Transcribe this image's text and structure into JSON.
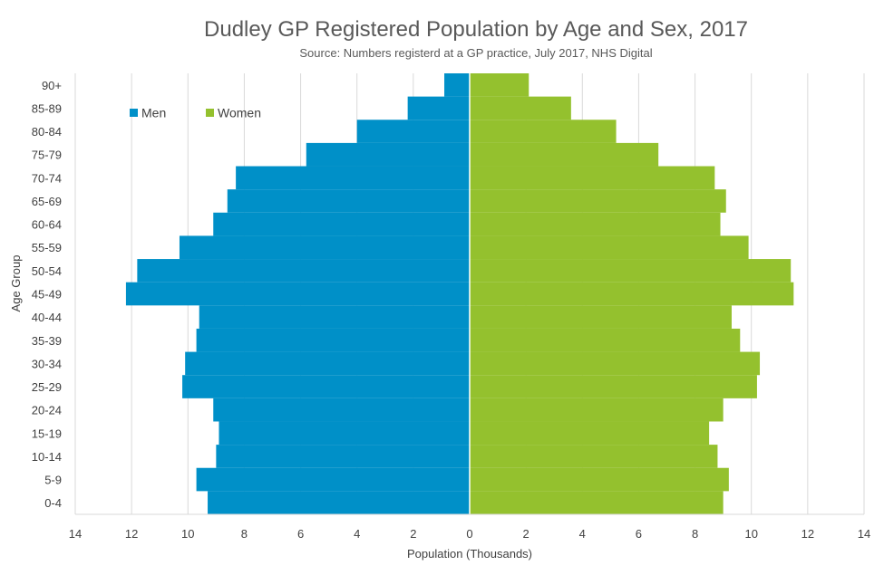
{
  "chart_data": {
    "type": "bar",
    "orientation": "horizontal",
    "layout": "population-pyramid",
    "title": "Dudley GP Registered Population by Age and Sex, 2017",
    "subtitle": "Source: Numbers registerd at a GP practice, July 2017, NHS Digital",
    "xlabel": "Population (Thousands)",
    "ylabel": "Age Group",
    "xlim": [
      -14,
      14
    ],
    "x_ticks": [
      -14,
      -12,
      -10,
      -8,
      -6,
      -4,
      -2,
      0,
      2,
      4,
      6,
      8,
      10,
      12,
      14
    ],
    "x_tick_labels": [
      "14",
      "12",
      "10",
      "8",
      "6",
      "4",
      "2",
      "0",
      "2",
      "4",
      "6",
      "8",
      "10",
      "12",
      "14"
    ],
    "grid": "vertical",
    "legend_position": "top-left",
    "categories": [
      "0-4",
      "5-9",
      "10-14",
      "15-19",
      "20-24",
      "25-29",
      "30-34",
      "35-39",
      "40-44",
      "45-49",
      "50-54",
      "55-59",
      "60-64",
      "65-69",
      "70-74",
      "75-79",
      "80-84",
      "85-89",
      "90+"
    ],
    "series": [
      {
        "name": "Men",
        "color": "#0090c8",
        "values": [
          9.3,
          9.7,
          9.0,
          8.9,
          9.1,
          10.2,
          10.1,
          9.7,
          9.6,
          12.2,
          11.8,
          10.3,
          9.1,
          8.6,
          8.3,
          5.8,
          4.0,
          2.2,
          0.9
        ]
      },
      {
        "name": "Women",
        "color": "#94c12e",
        "values": [
          9.0,
          9.2,
          8.8,
          8.5,
          9.0,
          10.2,
          10.3,
          9.6,
          9.3,
          11.5,
          11.4,
          9.9,
          8.9,
          9.1,
          8.7,
          6.7,
          5.2,
          3.6,
          2.1
        ]
      }
    ]
  }
}
